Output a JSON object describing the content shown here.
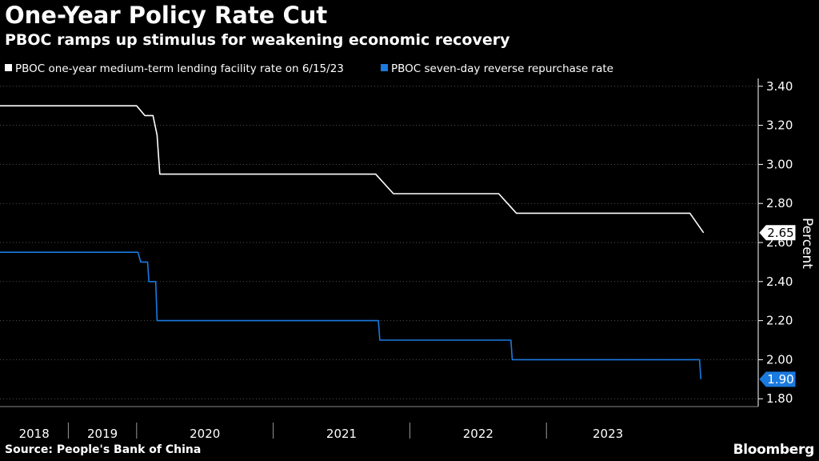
{
  "title": "One-Year Policy Rate Cut",
  "subtitle": "PBOC ramps up stimulus for weakening economic recovery",
  "source": "Source: People's Bank of China",
  "brand": "Bloomberg",
  "colors": {
    "background": "#000000",
    "mlf": "#ffffff",
    "repo": "#1a7ae0",
    "axis": "#ffffff",
    "grid": "#555555"
  },
  "chart_data": {
    "type": "line",
    "title": "One-Year Policy Rate Cut",
    "xlabel": "",
    "ylabel": "Percent",
    "xlim": [
      2018.0,
      2023.55
    ],
    "ylim": [
      1.76,
      3.44
    ],
    "y_ticks": [
      1.8,
      2.0,
      2.2,
      2.4,
      2.6,
      2.8,
      3.0,
      3.2,
      3.4
    ],
    "y_tick_labels": [
      "1.80",
      "2.00",
      "2.20",
      "2.40",
      "2.60",
      "2.80",
      "3.00",
      "3.20",
      "3.40"
    ],
    "x_tick_labels": [
      "2018",
      "2019",
      "2020",
      "2021",
      "2022",
      "2023"
    ],
    "x_label_positions": [
      2018.25,
      2018.75,
      2019.5,
      2020.5,
      2021.5,
      2022.45
    ],
    "x_separators": [
      2018.5,
      2019.0,
      2020.0,
      2021.0,
      2022.0
    ],
    "grid": true,
    "legend_position": "top-left",
    "series": [
      {
        "name": "PBOC one-year medium-term lending facility rate on 6/15/23",
        "color": "#ffffff",
        "end_label": "2.65",
        "points": [
          [
            2018.0,
            3.3
          ],
          [
            2019.0,
            3.3
          ],
          [
            2019.06,
            3.25
          ],
          [
            2019.12,
            3.25
          ],
          [
            2019.15,
            3.15
          ],
          [
            2019.17,
            2.95
          ],
          [
            2020.75,
            2.95
          ],
          [
            2020.88,
            2.85
          ],
          [
            2021.65,
            2.85
          ],
          [
            2021.78,
            2.75
          ],
          [
            2023.05,
            2.75
          ],
          [
            2023.15,
            2.65
          ]
        ]
      },
      {
        "name": "PBOC seven-day reverse repurchase rate",
        "color": "#1a7ae0",
        "end_label": "1.90",
        "points": [
          [
            2018.0,
            2.55
          ],
          [
            2019.01,
            2.55
          ],
          [
            2019.03,
            2.5
          ],
          [
            2019.08,
            2.5
          ],
          [
            2019.09,
            2.4
          ],
          [
            2019.14,
            2.4
          ],
          [
            2019.15,
            2.2
          ],
          [
            2020.77,
            2.2
          ],
          [
            2020.78,
            2.1
          ],
          [
            2021.74,
            2.1
          ],
          [
            2021.75,
            2.0
          ],
          [
            2023.12,
            2.0
          ],
          [
            2023.13,
            1.9
          ]
        ]
      }
    ]
  }
}
